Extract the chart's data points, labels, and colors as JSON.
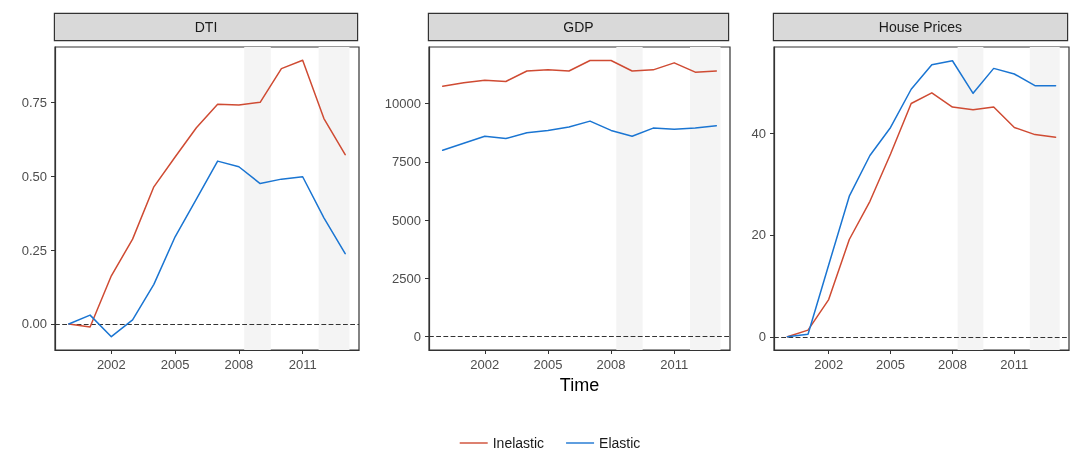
{
  "chart_data": [
    {
      "type": "line",
      "title": "DTI",
      "x": [
        2000,
        2001,
        2002,
        2003,
        2004,
        2005,
        2006,
        2007,
        2008,
        2009,
        2010,
        2011,
        2012,
        2013
      ],
      "series": [
        {
          "color": "#cf4b33",
          "values": [
            0,
            -0.01,
            0.163,
            0.287,
            0.464,
            0.565,
            0.664,
            0.743,
            0.741,
            0.75,
            0.864,
            0.892,
            0.695,
            0.573
          ]
        },
        {
          "color": "#1a75d2",
          "values": [
            0,
            0.03,
            -0.043,
            0.014,
            0.134,
            0.295,
            0.422,
            0.551,
            0.532,
            0.475,
            0.49,
            0.498,
            0.359,
            0.238
          ]
        }
      ],
      "xlim": [
        1999.35,
        2013.65
      ],
      "xticks": [
        2002,
        2005,
        2008,
        2011
      ],
      "ylim": [
        -0.088,
        0.937
      ],
      "yticks": [
        {
          "value": 0,
          "label": "0.00"
        },
        {
          "value": 0.25,
          "label": "0.25"
        },
        {
          "value": 0.5,
          "label": "0.50"
        },
        {
          "value": 0.75,
          "label": "0.75"
        }
      ],
      "ref_lines": [
        {
          "axis": "y",
          "value": 0,
          "label": null,
          "color": "#333333",
          "line_style": "dashed"
        }
      ],
      "bands": [
        {
          "axis": "x",
          "from": 2008.25,
          "to": 2009.5,
          "label": null,
          "color": "#f4f4f4"
        },
        {
          "axis": "x",
          "from": 2011.75,
          "to": 2013.2,
          "label": null,
          "color": "#f4f4f4"
        }
      ],
      "grid": false,
      "legend": false,
      "marker": "none",
      "line_style": "solid"
    },
    {
      "type": "line",
      "title": "GDP",
      "xlabel": "Time",
      "x": [
        2000,
        2001,
        2002,
        2003,
        2004,
        2005,
        2006,
        2007,
        2008,
        2009,
        2010,
        2011,
        2012,
        2013
      ],
      "series": [
        {
          "name": "Inelastic",
          "color": "#cf4b33",
          "values": [
            10750,
            10900,
            11000,
            10950,
            11400,
            11450,
            11400,
            11850,
            11850,
            11400,
            11450,
            11750,
            11350,
            11400
          ]
        },
        {
          "name": "Elastic",
          "color": "#1a75d2",
          "values": [
            8000,
            8300,
            8600,
            8500,
            8750,
            8850,
            9000,
            9250,
            8850,
            8600,
            8950,
            8900,
            8950,
            9050
          ]
        }
      ],
      "xlim": [
        1999.35,
        2013.65
      ],
      "xticks": [
        2002,
        2005,
        2008,
        2011
      ],
      "ylim": [
        -571,
        12430
      ],
      "yticks": [
        0,
        2500,
        5000,
        7500,
        10000
      ],
      "ref_lines": [
        {
          "axis": "y",
          "value": 0,
          "label": null,
          "color": "#333333",
          "line_style": "dashed"
        }
      ],
      "bands": [
        {
          "axis": "x",
          "from": 2008.25,
          "to": 2009.5,
          "label": null,
          "color": "#f4f4f4"
        },
        {
          "axis": "x",
          "from": 2011.75,
          "to": 2013.2,
          "label": null,
          "color": "#f4f4f4"
        }
      ],
      "grid": false,
      "legend": "bottom",
      "marker": "none",
      "line_style": "solid"
    },
    {
      "type": "line",
      "title": "House Prices",
      "x": [
        2000,
        2001,
        2002,
        2003,
        2004,
        2005,
        2006,
        2007,
        2008,
        2009,
        2010,
        2011,
        2012,
        2013
      ],
      "series": [
        {
          "color": "#cf4b33",
          "values": [
            0,
            1.3,
            7.3,
            19.1,
            26.6,
            35.9,
            45.8,
            47.9,
            45.1,
            44.6,
            45.1,
            41.1,
            39.7,
            39.2
          ]
        },
        {
          "color": "#1a75d2",
          "values": [
            0,
            0.5,
            14.1,
            27.6,
            35.6,
            41.1,
            48.6,
            53.4,
            54.2,
            47.8,
            52.7,
            51.6,
            49.3,
            49.3
          ]
        }
      ],
      "xlim": [
        1999.35,
        2013.65
      ],
      "xticks": [
        2002,
        2005,
        2008,
        2011
      ],
      "ylim": [
        -2.6,
        56.9
      ],
      "yticks": [
        0,
        20,
        40
      ],
      "ref_lines": [
        {
          "axis": "y",
          "value": 0,
          "label": null,
          "color": "#333333",
          "line_style": "dashed"
        }
      ],
      "bands": [
        {
          "axis": "x",
          "from": 2008.25,
          "to": 2009.5,
          "label": null,
          "color": "#f4f4f4"
        },
        {
          "axis": "x",
          "from": 2011.75,
          "to": 2013.2,
          "label": null,
          "color": "#f4f4f4"
        }
      ],
      "grid": false,
      "legend": false,
      "marker": "none",
      "line_style": "solid"
    }
  ]
}
